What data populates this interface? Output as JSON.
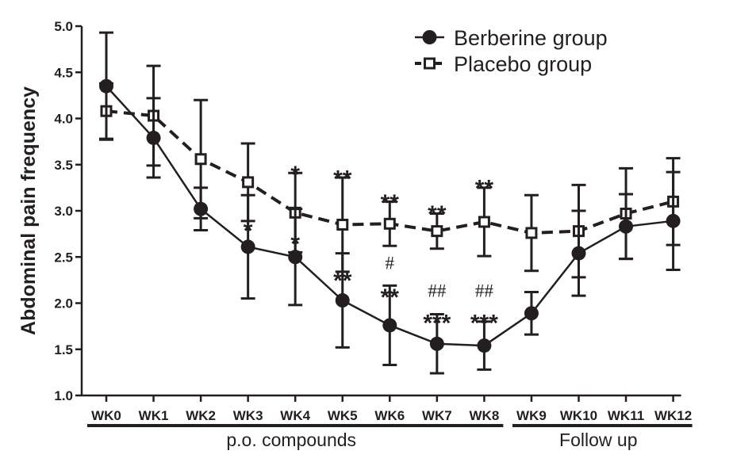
{
  "chart_data": {
    "type": "line",
    "title": "",
    "xlabel": "",
    "ylabel": "Abdominal pain frequency",
    "ylim": [
      1.0,
      5.0
    ],
    "yticks": [
      "1.0",
      "1.5",
      "2.0",
      "2.5",
      "3.0",
      "3.5",
      "4.0",
      "4.5",
      "5.0"
    ],
    "categories": [
      "WK0",
      "WK1",
      "WK2",
      "WK3",
      "WK4",
      "WK5",
      "WK6",
      "WK7",
      "WK8",
      "WK9",
      "WK10",
      "WK11",
      "WK12"
    ],
    "grid": false,
    "legend_position": "top-right",
    "series": [
      {
        "name": "Berberine group",
        "marker": "filled-circle",
        "line_style": "solid",
        "color": "#231f20",
        "values": [
          4.35,
          3.79,
          3.02,
          2.61,
          2.5,
          2.03,
          1.76,
          1.56,
          1.54,
          1.89,
          2.54,
          2.83,
          2.89
        ],
        "error_upper": [
          4.93,
          4.22,
          3.25,
          3.17,
          3.02,
          2.54,
          2.19,
          1.88,
          1.8,
          2.12,
          3.0,
          3.18,
          3.42
        ],
        "error_lower": [
          3.77,
          3.36,
          2.79,
          2.05,
          1.98,
          1.52,
          1.33,
          1.24,
          1.28,
          1.66,
          2.08,
          2.48,
          2.36
        ]
      },
      {
        "name": "Placebo group",
        "marker": "open-square",
        "line_style": "dashed",
        "color": "#231f20",
        "values": [
          4.08,
          4.03,
          3.56,
          3.31,
          2.98,
          2.85,
          2.86,
          2.78,
          2.88,
          2.76,
          2.78,
          2.97,
          3.1
        ],
        "error_upper": [
          4.38,
          4.57,
          4.2,
          3.73,
          3.41,
          3.36,
          3.1,
          2.97,
          3.25,
          3.17,
          3.28,
          3.46,
          3.57
        ],
        "error_lower": [
          3.78,
          3.49,
          2.92,
          2.89,
          2.55,
          2.34,
          2.62,
          2.59,
          2.51,
          2.35,
          2.28,
          2.48,
          2.63
        ]
      }
    ],
    "annotations": [
      {
        "text": "*",
        "category": "WK3",
        "y": 2.82,
        "style": "star"
      },
      {
        "text": "*",
        "category": "WK4",
        "y": 2.68,
        "style": "star"
      },
      {
        "text": "*",
        "category": "WK4",
        "y": 3.43,
        "style": "star"
      },
      {
        "text": "**",
        "category": "WK5",
        "y": 2.28,
        "style": "star"
      },
      {
        "text": "**",
        "category": "WK5",
        "y": 3.38,
        "style": "star"
      },
      {
        "text": "#",
        "category": "WK6",
        "y": 2.37,
        "style": "hash"
      },
      {
        "text": "**",
        "category": "WK6",
        "y": 2.1,
        "style": "star"
      },
      {
        "text": "**",
        "category": "WK6",
        "y": 3.12,
        "style": "star"
      },
      {
        "text": "##",
        "category": "WK7",
        "y": 2.07,
        "style": "hash"
      },
      {
        "text": "***",
        "category": "WK7",
        "y": 1.82,
        "style": "star"
      },
      {
        "text": "**",
        "category": "WK7",
        "y": 3.0,
        "style": "star"
      },
      {
        "text": "##",
        "category": "WK8",
        "y": 2.07,
        "style": "hash"
      },
      {
        "text": "***",
        "category": "WK8",
        "y": 1.82,
        "style": "star"
      },
      {
        "text": "**",
        "category": "WK8",
        "y": 3.28,
        "style": "star"
      }
    ],
    "period_groups": [
      {
        "label": "p.o. compounds",
        "from": "WK0",
        "to": "WK8"
      },
      {
        "label": "Follow up",
        "from": "WK9",
        "to": "WK12"
      }
    ]
  }
}
